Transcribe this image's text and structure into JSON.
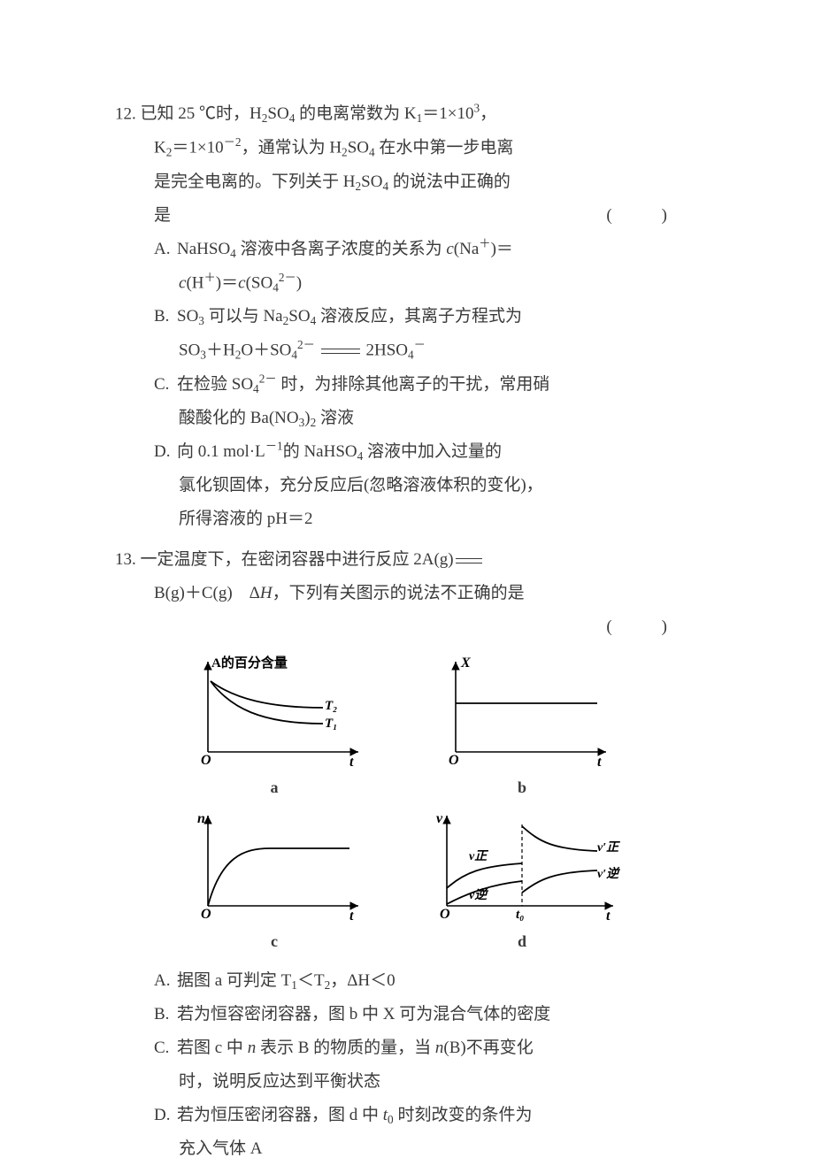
{
  "q12": {
    "number": "12.",
    "stem_lines": [
      "已知 25 ℃时，H<sub>2</sub>SO<sub>4</sub> 的电离常数为 K<sub>1</sub>＝1×10<sup>3</sup>，",
      "K<sub>2</sub>＝1×10<sup>－2</sup>，通常认为 H<sub>2</sub>SO<sub>4</sub> 在水中第一步电离",
      "是完全电离的。下列关于 H<sub>2</sub>SO<sub>4</sub> 的说法中正确的",
      "是"
    ],
    "bracket": "(　　)",
    "options": {
      "A": [
        "NaHSO<sub>4</sub> 溶液中各离子浓度的关系为 <i>c</i>(Na<sup>＋</sup>)＝",
        "<i>c</i>(H<sup>＋</sup>)＝<i>c</i>(SO<sub>4</sub><sup>2－</sup>)"
      ],
      "B": [
        "SO<sub>3</sub> 可以与 Na<sub>2</sub>SO<sub>4</sub> 溶液反应，其离子方程式为",
        "SO<sub>3</sub>＋H<sub>2</sub>O＋SO<sub>4</sub><sup>2－</sup> <span class=\"eqarrow\"></span> 2HSO<sub>4</sub><sup>－</sup>"
      ],
      "C": [
        "在检验 SO<sub>4</sub><sup>2－</sup> 时，为排除其他离子的干扰，常用硝",
        "酸酸化的 Ba(NO<sub>3</sub>)<sub>2</sub> 溶液"
      ],
      "D": [
        "向 0.1 mol·L<sup>－1</sup>的 NaHSO<sub>4</sub> 溶液中加入过量的",
        "氯化钡固体，充分反应后(忽略溶液体积的变化)，",
        "所得溶液的 pH＝2"
      ]
    }
  },
  "q13": {
    "number": "13.",
    "stem_lines": [
      "一定温度下，在密闭容器中进行反应 2A(g)<span class=\"eqarrow short-eqarrow\"></span>",
      "B(g)＋C(g)　Δ<i>H</i>，下列有关图示的说法不正确的是"
    ],
    "bracket": "(　　)",
    "charts": {
      "a": {
        "label": "a",
        "ylabel": "A的百分含量",
        "xlabel": "t",
        "origin": "O",
        "T1": "T₁",
        "T2": "T₂",
        "color": "#000000",
        "axis_width": 1.5
      },
      "b": {
        "label": "b",
        "ylabel": "X",
        "xlabel": "t",
        "origin": "O",
        "color": "#000000",
        "axis_width": 1.5
      },
      "c": {
        "label": "c",
        "ylabel": "n",
        "xlabel": "t",
        "origin": "O",
        "color": "#000000",
        "axis_width": 1.5
      },
      "d": {
        "label": "d",
        "ylabel": "v",
        "xlabel": "t",
        "origin": "O",
        "t0": "t₀",
        "v_zheng": "v正",
        "v_ni": "v逆",
        "vprime_zheng": "v′正",
        "vprime_ni": "v′逆",
        "color": "#000000",
        "axis_width": 1.5
      }
    },
    "options": {
      "A": [
        "据图 a 可判定 T<sub>1</sub>＜T<sub>2</sub>，ΔH＜0"
      ],
      "B": [
        "若为恒容密闭容器，图 b 中 X 可为混合气体的密度"
      ],
      "C": [
        "若图 c 中 <i>n</i> 表示 B 的物质的量，当 <i>n</i>(B)不再变化",
        "时，说明反应达到平衡状态"
      ],
      "D": [
        "若为恒压密闭容器，图 d 中 <i>t</i><sub>0</sub> 时刻改变的条件为",
        "充入气体 A"
      ]
    }
  }
}
